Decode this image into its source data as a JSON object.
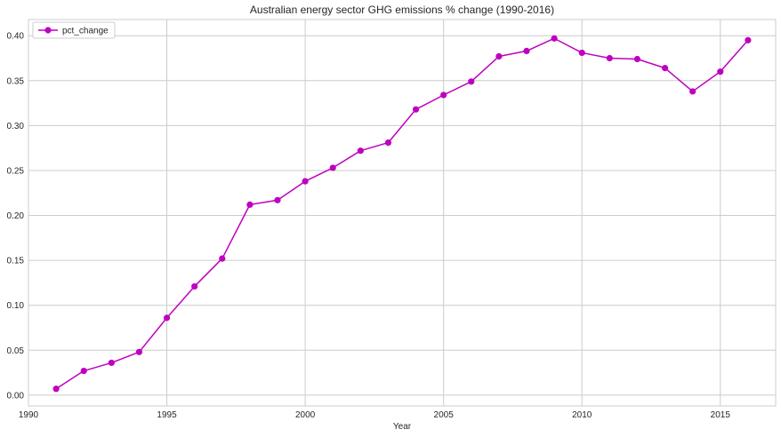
{
  "chart_data": {
    "type": "line",
    "title": "Australian energy sector GHG emissions % change (1990-2016)",
    "xlabel": "Year",
    "ylabel": "",
    "xlim": [
      1990,
      2017
    ],
    "ylim": [
      -0.012,
      0.418
    ],
    "xticks": [
      1990,
      1995,
      2000,
      2005,
      2010,
      2015
    ],
    "yticks": [
      0.0,
      0.05,
      0.1,
      0.15,
      0.2,
      0.25,
      0.3,
      0.35,
      0.4
    ],
    "ytick_labels": [
      "0.00",
      "0.05",
      "0.10",
      "0.15",
      "0.20",
      "0.25",
      "0.30",
      "0.35",
      "0.40"
    ],
    "grid": true,
    "legend_position": "top-left",
    "series": [
      {
        "name": "pct_change",
        "color": "#bf00bf",
        "marker": "circle",
        "x": [
          1991,
          1992,
          1993,
          1994,
          1995,
          1996,
          1997,
          1998,
          1999,
          2000,
          2001,
          2002,
          2003,
          2004,
          2005,
          2006,
          2007,
          2008,
          2009,
          2010,
          2011,
          2012,
          2013,
          2014,
          2015,
          2016
        ],
        "y": [
          0.007,
          0.027,
          0.036,
          0.048,
          0.086,
          0.121,
          0.152,
          0.212,
          0.217,
          0.238,
          0.253,
          0.272,
          0.281,
          0.318,
          0.334,
          0.349,
          0.377,
          0.383,
          0.397,
          0.381,
          0.375,
          0.374,
          0.364,
          0.338,
          0.36,
          0.395
        ]
      }
    ]
  }
}
